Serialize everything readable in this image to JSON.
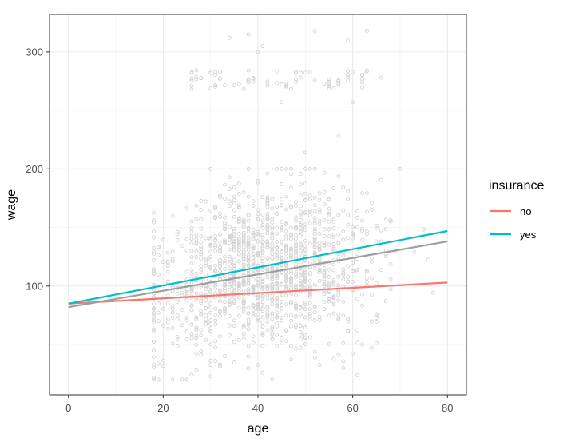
{
  "chart_data": {
    "type": "scatter",
    "xlabel": "age",
    "ylabel": "wage",
    "xlim": [
      -4,
      84
    ],
    "ylim": [
      7,
      332
    ],
    "x_ticks": [
      0,
      20,
      40,
      60,
      80
    ],
    "y_ticks": [
      100,
      200,
      300
    ],
    "x_tick_labels": [
      "0",
      "20",
      "40",
      "60",
      "80"
    ],
    "y_tick_labels": [
      "100",
      "200",
      "300"
    ],
    "grid": true,
    "legend": {
      "title": "insurance",
      "position": "right",
      "entries": [
        {
          "label": "no",
          "color": "#F8766D"
        },
        {
          "label": "yes",
          "color": "#00BFC4"
        }
      ]
    },
    "scatter_color": "#d3d3d3",
    "points_description_range": {
      "x": [
        18,
        80
      ],
      "y": [
        20,
        318
      ]
    },
    "lines": [
      {
        "name": "no",
        "color": "#F8766D",
        "x": [
          0,
          80
        ],
        "y": [
          85,
          103
        ]
      },
      {
        "name": "yes",
        "color": "#00BFC4",
        "x": [
          0,
          80
        ],
        "y": [
          85,
          147
        ]
      },
      {
        "name": "",
        "color": "#9e9e9e",
        "x": [
          0,
          80
        ],
        "y": [
          82,
          138
        ]
      }
    ]
  }
}
